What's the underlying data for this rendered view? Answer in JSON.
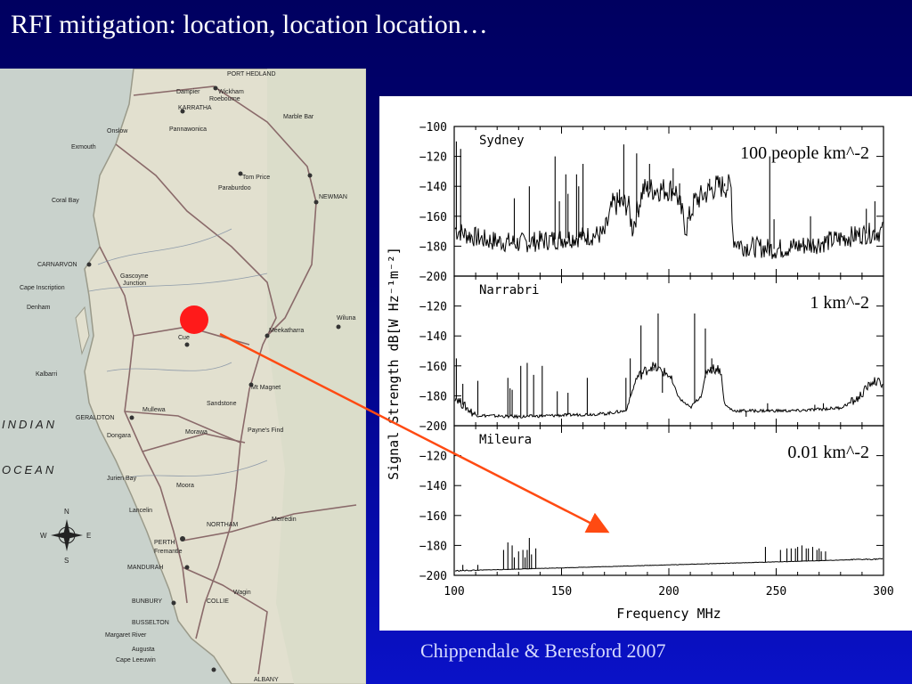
{
  "slide": {
    "title": "RFI mitigation: location, location location…",
    "citation": "Chippendale & Beresford 2007"
  },
  "map": {
    "labels": [
      "PORT HEDLAND",
      "Dampier",
      "Wickham",
      "KARRATHA",
      "Roebourne",
      "Marble Bar",
      "Onslow",
      "Pannawonica",
      "Exmouth",
      "Tom Price",
      "Paraburdoo",
      "NEWMAN",
      "Coral Bay",
      "CARNARVON",
      "Gascoyne Junction",
      "Cape Inscription",
      "Denham",
      "Wiluna",
      "Meekatharra",
      "Cue",
      "Mt Magnet",
      "Kalbarri",
      "GERALDTON",
      "Mullewa",
      "Sandstone",
      "Dongara",
      "Payne's Find",
      "Morawa",
      "Jurien Bay",
      "Lancelin",
      "Moora",
      "PERTH",
      "Fremantle",
      "MANDURAH",
      "NORTHAM",
      "Merredin",
      "BUNBURY",
      "BUSSELTON",
      "Margaret River",
      "Augusta",
      "Cape Leeuwin",
      "COLLIE",
      "Wagin",
      "ALBANY",
      "INDIAN",
      "OCEAN",
      "N",
      "S",
      "E",
      "W"
    ],
    "marker_colors": {
      "site": "#ff1a1a",
      "arrow": "#ff4a12"
    }
  },
  "chart_data": {
    "type": "line",
    "xlabel": "Frequency  MHz",
    "ylabel": "Signal Strength dB[W Hz⁻¹m⁻²]",
    "xlim": [
      100,
      300
    ],
    "ylim": [
      -200,
      -100
    ],
    "x_ticks": [
      "100",
      "150",
      "200",
      "250",
      "300"
    ],
    "y_ticks": [
      "−100",
      "−120",
      "−140",
      "−160",
      "−180",
      "−200"
    ],
    "panels": [
      {
        "name": "Sydney",
        "density": "100 people km^-2",
        "noise_floor": [
          [
            100,
            -168
          ],
          [
            105,
            -172
          ],
          [
            115,
            -176
          ],
          [
            130,
            -178
          ],
          [
            150,
            -175
          ],
          [
            170,
            -172
          ],
          [
            174,
            -152
          ],
          [
            181,
            -152
          ],
          [
            183,
            -168
          ],
          [
            188,
            -142
          ],
          [
            203,
            -142
          ],
          [
            208,
            -168
          ],
          [
            212,
            -150
          ],
          [
            222,
            -140
          ],
          [
            229,
            -140
          ],
          [
            230,
            -176
          ],
          [
            235,
            -180
          ],
          [
            250,
            -182
          ],
          [
            270,
            -178
          ],
          [
            290,
            -172
          ],
          [
            300,
            -170
          ]
        ],
        "spikes": [
          [
            101,
            -110
          ],
          [
            103,
            -115
          ],
          [
            128,
            -148
          ],
          [
            135,
            -140
          ],
          [
            147,
            -120
          ],
          [
            149,
            -150
          ],
          [
            152,
            -132
          ],
          [
            153,
            -145
          ],
          [
            157,
            -132
          ],
          [
            158,
            -140
          ],
          [
            160,
            -125
          ],
          [
            177,
            -142
          ],
          [
            179,
            -112
          ],
          [
            185,
            -118
          ],
          [
            191,
            -125
          ],
          [
            196,
            -145
          ],
          [
            202,
            -128
          ],
          [
            205,
            -138
          ],
          [
            219,
            -135
          ],
          [
            226,
            -138
          ],
          [
            247,
            -120
          ],
          [
            249,
            -162
          ],
          [
            266,
            -160
          ],
          [
            292,
            -155
          ],
          [
            296,
            -150
          ]
        ]
      },
      {
        "name": "Narrabri",
        "density": "1 km^-2",
        "noise_floor": [
          [
            100,
            -180
          ],
          [
            104,
            -186
          ],
          [
            110,
            -193
          ],
          [
            130,
            -194
          ],
          [
            150,
            -193
          ],
          [
            170,
            -192
          ],
          [
            180,
            -190
          ],
          [
            185,
            -168
          ],
          [
            192,
            -160
          ],
          [
            200,
            -166
          ],
          [
            205,
            -182
          ],
          [
            210,
            -188
          ],
          [
            215,
            -180
          ],
          [
            218,
            -162
          ],
          [
            224,
            -162
          ],
          [
            226,
            -186
          ],
          [
            230,
            -190
          ],
          [
            260,
            -190
          ],
          [
            280,
            -188
          ],
          [
            288,
            -182
          ],
          [
            295,
            -170
          ],
          [
            300,
            -172
          ]
        ],
        "spikes": [
          [
            101,
            -155
          ],
          [
            104,
            -172
          ],
          [
            111,
            -170
          ],
          [
            125,
            -168
          ],
          [
            126,
            -175
          ],
          [
            127,
            -176
          ],
          [
            131,
            -160
          ],
          [
            134,
            -158
          ],
          [
            137,
            -166
          ],
          [
            141,
            -160
          ],
          [
            148,
            -177
          ],
          [
            153,
            -178
          ],
          [
            162,
            -168
          ],
          [
            180,
            -168
          ],
          [
            182,
            -155
          ],
          [
            187,
            -133
          ],
          [
            193,
            -163
          ],
          [
            195,
            -125
          ],
          [
            197,
            -178
          ],
          [
            212,
            -125
          ],
          [
            217,
            -135
          ],
          [
            220,
            -155
          ],
          [
            236,
            -194
          ],
          [
            246,
            -185
          ],
          [
            268,
            -186
          ],
          [
            272,
            -185
          ]
        ]
      },
      {
        "name": "Mileura",
        "density": "0.01 km^-2",
        "noise_floor": [
          [
            100,
            -197
          ],
          [
            150,
            -195
          ],
          [
            200,
            -193
          ],
          [
            250,
            -191
          ],
          [
            300,
            -189
          ]
        ],
        "spikes": [
          [
            104,
            -193
          ],
          [
            111,
            -193
          ],
          [
            123,
            -183
          ],
          [
            125,
            -178
          ],
          [
            127,
            -180
          ],
          [
            128,
            -188
          ],
          [
            130,
            -184
          ],
          [
            132,
            -183
          ],
          [
            133,
            -188
          ],
          [
            134,
            -183
          ],
          [
            135,
            -175
          ],
          [
            136,
            -186
          ],
          [
            138,
            -182
          ],
          [
            245,
            -181
          ],
          [
            252,
            -183
          ],
          [
            255,
            -182
          ],
          [
            257,
            -182
          ],
          [
            259,
            -182
          ],
          [
            260,
            -181
          ],
          [
            262,
            -180
          ],
          [
            264,
            -182
          ],
          [
            265,
            -182
          ],
          [
            267,
            -181
          ],
          [
            269,
            -183
          ],
          [
            270,
            -182
          ],
          [
            271,
            -184
          ],
          [
            273,
            -184
          ]
        ]
      }
    ]
  }
}
